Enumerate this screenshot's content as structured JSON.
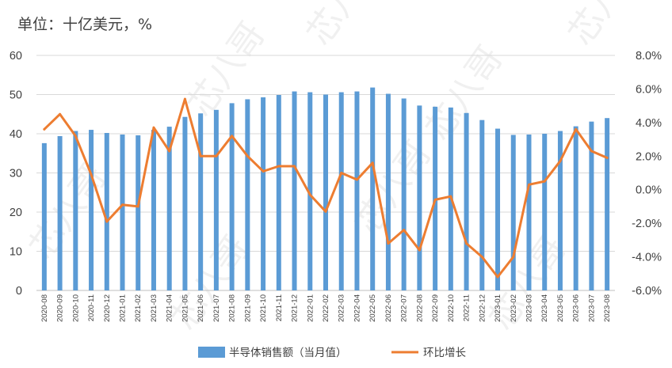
{
  "chart_data": {
    "type": "bar+line",
    "unit_title": "单位：十亿美元，%",
    "categories": [
      "2020-08",
      "2020-09",
      "2020-10",
      "2020-11",
      "2020-12",
      "2021-01",
      "2021-02",
      "2021-03",
      "2021-04",
      "2021-05",
      "2021-06",
      "2021-07",
      "2021-08",
      "2021-09",
      "2021-10",
      "2021-11",
      "2021-12",
      "2022-01",
      "2022-02",
      "2022-03",
      "2022-04",
      "2022-05",
      "2022-06",
      "2022-07",
      "2022-08",
      "2022-09",
      "2022-10",
      "2022-11",
      "2022-12",
      "2023-01",
      "2023-02",
      "2023-03",
      "2023-04",
      "2023-05",
      "2023-06",
      "2023-07",
      "2023-08"
    ],
    "series": [
      {
        "name": "半导体销售额（当月值）",
        "type": "bar",
        "axis": "left",
        "color": "#5B9BD5",
        "values": [
          37.6,
          39.4,
          40.7,
          41.0,
          40.2,
          39.8,
          39.6,
          41.0,
          41.8,
          44.3,
          45.2,
          46.1,
          47.8,
          48.8,
          49.3,
          49.9,
          50.8,
          50.6,
          50.0,
          50.6,
          50.8,
          51.8,
          50.2,
          49.0,
          47.2,
          46.9,
          46.7,
          45.3,
          43.5,
          41.3,
          39.7,
          39.8,
          40.0,
          40.7,
          41.9,
          43.1,
          44.0
        ]
      },
      {
        "name": "环比增长",
        "type": "line",
        "axis": "right",
        "color": "#ED7D31",
        "values": [
          3.6,
          4.5,
          3.2,
          0.9,
          -1.9,
          -0.9,
          -1.0,
          3.7,
          2.3,
          5.4,
          2.0,
          2.0,
          3.2,
          2.0,
          1.1,
          1.4,
          1.4,
          -0.3,
          -1.3,
          1.0,
          0.6,
          1.6,
          -3.2,
          -2.4,
          -3.6,
          -0.6,
          -0.4,
          -3.2,
          -4.0,
          -5.2,
          -4.0,
          0.3,
          0.5,
          1.7,
          3.6,
          2.3,
          1.9
        ]
      }
    ],
    "y_left": {
      "min": 0,
      "max": 60,
      "ticks": [
        "0",
        "10",
        "20",
        "30",
        "40",
        "50",
        "60"
      ]
    },
    "y_right": {
      "min": -6,
      "max": 8,
      "ticks": [
        "-6.0%",
        "-4.0%",
        "-2.0%",
        "0.0%",
        "2.0%",
        "4.0%",
        "6.0%",
        "8.0%"
      ]
    },
    "grid": "horizontal",
    "legend_position": "bottom"
  },
  "watermark": "芯八哥"
}
